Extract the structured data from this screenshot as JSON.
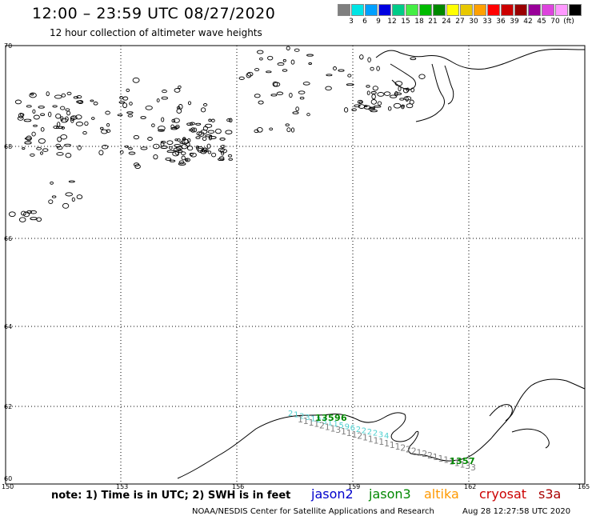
{
  "title": "12:00 – 23:59 UTC 08/27/2020",
  "subtitle": "12 hour collection of altimeter wave heights",
  "scale": {
    "colors": [
      "#7f7f7f",
      "#00e5e5",
      "#00a0ff",
      "#0000e0",
      "#00cc88",
      "#44ee44",
      "#00bb00",
      "#008800",
      "#ffff00",
      "#e8c800",
      "#ffa000",
      "#ff0000",
      "#cc0000",
      "#990000",
      "#990099",
      "#dd44dd",
      "#ff99ff",
      "#000000"
    ],
    "labels": [
      "3",
      "6",
      "9",
      "12",
      "15",
      "18",
      "21",
      "24",
      "27",
      "30",
      "33",
      "36",
      "39",
      "42",
      "45",
      "70",
      "(ft)"
    ]
  },
  "map": {
    "lat_labels": [
      "70",
      "68",
      "66",
      "64",
      "62",
      "60"
    ],
    "lon_labels": [
      "150",
      "153",
      "156",
      "159",
      "162",
      "165"
    ]
  },
  "tracks": [
    {
      "satellite": "jason3",
      "color": "#4fd0d0",
      "labels": [
        "2",
        "1",
        "2",
        "3",
        "1",
        "2",
        "3",
        "1",
        "1",
        "5",
        "9",
        "6",
        "2",
        "2",
        "2",
        "2",
        "3",
        "4"
      ]
    },
    {
      "satellite": "altika",
      "color": "#808080",
      "labels": [
        "1",
        "1",
        "1",
        "1",
        "2",
        "1",
        "1",
        "3",
        "1",
        "1",
        "1",
        "2",
        "1",
        "1",
        "1",
        "1",
        "1",
        "1",
        "1",
        "2",
        "2",
        "2",
        "1",
        "2",
        "2",
        "1",
        "1",
        "1",
        "1",
        "1",
        "1",
        "3",
        "3"
      ]
    },
    {
      "satellite": "jason3",
      "color": "#008800",
      "labels": [
        "1",
        "3",
        "5",
        "9",
        "6",
        "1",
        "3",
        "5",
        "7"
      ]
    }
  ],
  "footer": {
    "note": "note: 1) Time is in UTC; 2) SWH is in feet",
    "satellites": [
      {
        "name": "jason2",
        "color": "#0000cc"
      },
      {
        "name": "jason3",
        "color": "#008800"
      },
      {
        "name": "altika",
        "color": "#ff9900"
      },
      {
        "name": "cryosat",
        "color": "#cc0000"
      },
      {
        "name": "s3a",
        "color": "#aa0000"
      }
    ],
    "credit": "NOAA/NESDIS Center for Satellite Applications and Research",
    "timestamp": "Aug 28 12:27:58 UTC 2020"
  }
}
